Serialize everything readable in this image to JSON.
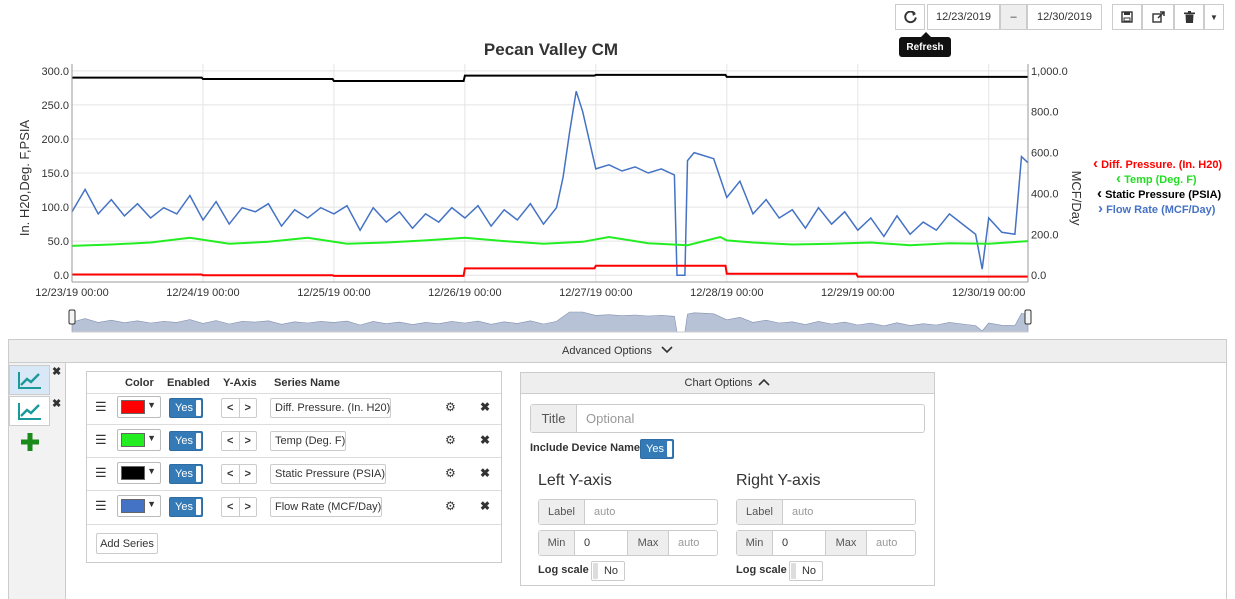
{
  "toolbar": {
    "refresh_tooltip": "Refresh",
    "start_date": "12/23/2019",
    "date_separator": "–",
    "end_date": "12/30/2019"
  },
  "chart_data": {
    "type": "line",
    "title": "Pecan Valley CM",
    "ylabel": "In. H20,Deg. F,PSIA",
    "y2label": "MCF/Day",
    "ylim": [
      -10,
      310
    ],
    "y2lim": [
      -33.3,
      1033.3
    ],
    "yticks": [
      "0.0",
      "50.0",
      "100.0",
      "150.0",
      "200.0",
      "250.0",
      "300.0"
    ],
    "y2ticks": [
      "0.0",
      "200.0",
      "400.0",
      "600.0",
      "800.0",
      "1,000.0"
    ],
    "xticks": [
      "12/23/19 00:00",
      "12/24/19 00:00",
      "12/25/19 00:00",
      "12/26/19 00:00",
      "12/27/19 00:00",
      "12/28/19 00:00",
      "12/29/19 00:00",
      "12/30/19 00:00"
    ],
    "xlim_days": [
      0,
      7.3
    ],
    "grid": true,
    "legend_position": "right",
    "series": [
      {
        "name": "Diff. Pressure. (In. H20)",
        "color": "#ff0000",
        "axis": "left",
        "x": [
          0,
          0.99,
          1.0,
          1.99,
          2.0,
          2.99,
          3.0,
          3.99,
          4.0,
          4.99,
          5.0,
          5.99,
          6.0,
          7.3
        ],
        "y": [
          1,
          1,
          0,
          0,
          -1,
          -1,
          10,
          10,
          14,
          14,
          2,
          2,
          -2,
          -2
        ]
      },
      {
        "name": "Temp (Deg. F)",
        "color": "#22ee22",
        "axis": "left",
        "x": [
          0,
          0.3,
          0.6,
          0.9,
          1.2,
          1.5,
          1.8,
          2.1,
          2.4,
          2.7,
          3.0,
          3.3,
          3.6,
          3.9,
          4.1,
          4.4,
          4.7,
          4.95,
          5.0,
          5.2,
          5.5,
          5.8,
          6.1,
          6.4,
          6.7,
          7.0,
          7.3
        ],
        "y": [
          43,
          45,
          48,
          55,
          46,
          49,
          55,
          46,
          48,
          51,
          55,
          50,
          46,
          49,
          56,
          47,
          44,
          56,
          51,
          48,
          45,
          46,
          48,
          44,
          47,
          46,
          50
        ]
      },
      {
        "name": "Static Pressure (PSIA)",
        "color": "#000000",
        "axis": "left",
        "x": [
          0,
          0.99,
          1.0,
          1.99,
          2.0,
          2.99,
          3.0,
          3.99,
          4.0,
          4.99,
          5.0,
          7.3
        ],
        "y": [
          290,
          290,
          288,
          288,
          285,
          285,
          293,
          293,
          294,
          294,
          291,
          291
        ]
      },
      {
        "name": "Flow Rate (MCF/Day)",
        "color": "#4472c4",
        "axis": "right",
        "x": [
          0,
          0.1,
          0.2,
          0.3,
          0.4,
          0.5,
          0.6,
          0.7,
          0.8,
          0.9,
          1.0,
          1.1,
          1.2,
          1.3,
          1.4,
          1.5,
          1.6,
          1.7,
          1.8,
          1.9,
          2.0,
          2.1,
          2.2,
          2.3,
          2.4,
          2.5,
          2.6,
          2.7,
          2.8,
          2.9,
          3.0,
          3.1,
          3.2,
          3.3,
          3.4,
          3.5,
          3.6,
          3.7,
          3.75,
          3.8,
          3.85,
          3.9,
          4.0,
          4.1,
          4.2,
          4.3,
          4.4,
          4.5,
          4.6,
          4.62,
          4.68,
          4.7,
          4.75,
          4.8,
          4.9,
          5.0,
          5.1,
          5.2,
          5.3,
          5.4,
          5.5,
          5.6,
          5.7,
          5.8,
          5.9,
          6.0,
          6.1,
          6.2,
          6.3,
          6.4,
          6.5,
          6.6,
          6.7,
          6.8,
          6.9,
          6.95,
          7.0,
          7.1,
          7.2,
          7.25,
          7.3
        ],
        "y": [
          310,
          420,
          300,
          370,
          290,
          350,
          280,
          330,
          300,
          390,
          270,
          360,
          250,
          330,
          310,
          350,
          240,
          320,
          280,
          330,
          300,
          340,
          220,
          330,
          260,
          310,
          230,
          300,
          260,
          330,
          280,
          340,
          240,
          320,
          270,
          350,
          250,
          330,
          480,
          700,
          900,
          800,
          520,
          540,
          510,
          530,
          500,
          520,
          490,
          0,
          0,
          560,
          600,
          590,
          570,
          380,
          460,
          300,
          370,
          280,
          320,
          230,
          330,
          250,
          310,
          220,
          280,
          190,
          290,
          200,
          260,
          220,
          300,
          250,
          200,
          30,
          280,
          210,
          200,
          580,
          550
        ]
      }
    ]
  },
  "advanced": {
    "label": "Advanced Options",
    "table_headers": {
      "color": "Color",
      "enabled": "Enabled",
      "yaxis": "Y-Axis",
      "series_name": "Series Name"
    },
    "rows": [
      {
        "swatch": "#ff0000",
        "enabled": "Yes",
        "name": "Diff. Pressure. (In. H20)"
      },
      {
        "swatch": "#22ee22",
        "enabled": "Yes",
        "name": "Temp (Deg. F)"
      },
      {
        "swatch": "#000000",
        "enabled": "Yes",
        "name": "Static Pressure (PSIA)"
      },
      {
        "swatch": "#4472c4",
        "enabled": "Yes",
        "name": "Flow Rate (MCF/Day)"
      }
    ],
    "add_series": "Add Series"
  },
  "chart_options": {
    "header": "Chart Options",
    "title_label": "Title",
    "title_placeholder": "Optional",
    "include_device_label": "Include Device Name",
    "include_device_value": "Yes",
    "left_axis": {
      "heading": "Left Y-axis",
      "label_addon": "Label",
      "label_placeholder": "auto",
      "min_addon": "Min",
      "min_value": "0",
      "max_addon": "Max",
      "max_placeholder": "auto",
      "log_label": "Log scale",
      "log_value": "No"
    },
    "right_axis": {
      "heading": "Right Y-axis",
      "label_addon": "Label",
      "label_placeholder": "auto",
      "min_addon": "Min",
      "min_value": "0",
      "max_addon": "Max",
      "max_placeholder": "auto",
      "log_label": "Log scale",
      "log_value": "No"
    }
  }
}
